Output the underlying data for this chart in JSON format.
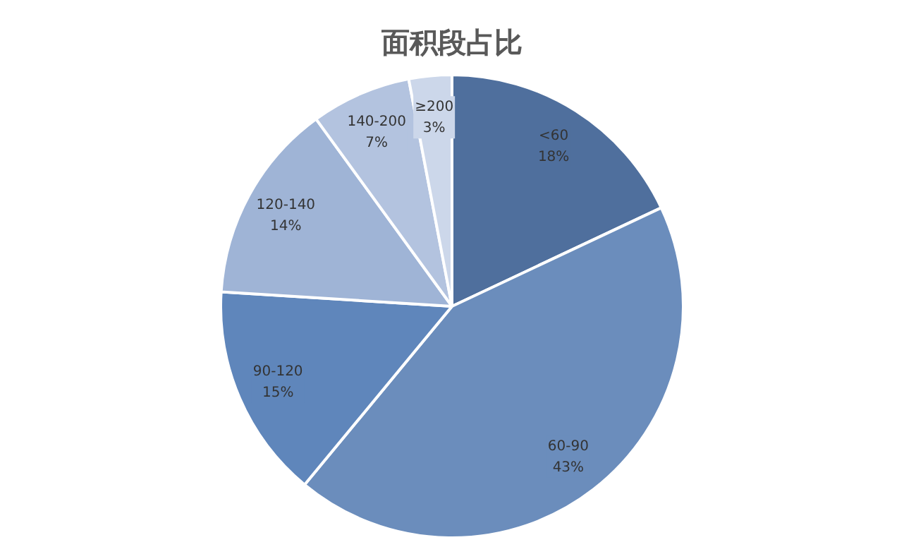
{
  "chart_data": {
    "type": "pie",
    "title": "面积段占比",
    "categories": [
      "<60",
      "60-90",
      "90-120",
      "120-140",
      "140-200",
      "≥200"
    ],
    "values": [
      18,
      43,
      15,
      14,
      7,
      3
    ],
    "value_labels": [
      "18%",
      "43%",
      "15%",
      "14%",
      "7%",
      "3%"
    ],
    "colors": [
      "#4f6f9d",
      "#6b8dbc",
      "#5f86bb",
      "#9fb4d6",
      "#b3c3df",
      "#ccd7ea"
    ],
    "legend": false
  }
}
